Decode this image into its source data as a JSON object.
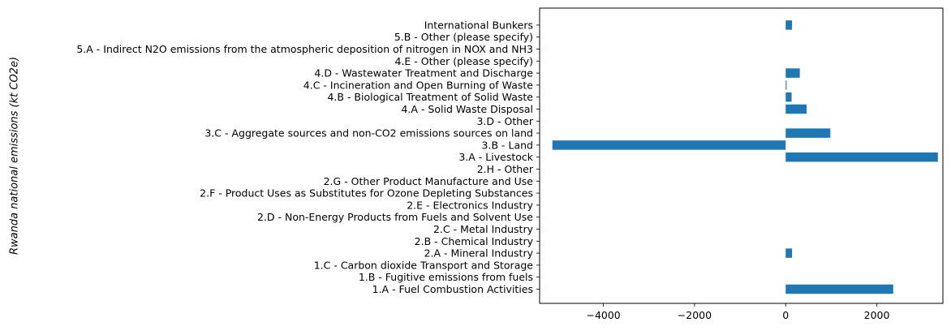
{
  "chart_data": {
    "type": "bar",
    "orientation": "horizontal",
    "ylabel": "Rwanda national emissions (kt CO2e)",
    "xlim": [
      -5400,
      3450
    ],
    "xticks": [
      -4000,
      -2000,
      0,
      2000
    ],
    "xtick_labels": [
      "−4000",
      "−2000",
      "0",
      "2000"
    ],
    "bar_color": "#1f77b4",
    "grid": false,
    "categories": [
      "1.A - Fuel Combustion Activities",
      "1.B - Fugitive emissions from fuels",
      "1.C - Carbon dioxide Transport and Storage",
      "2.A - Mineral Industry",
      "2.B - Chemical Industry",
      "2.C - Metal Industry",
      "2.D - Non-Energy Products from Fuels and Solvent Use",
      "2.E - Electronics Industry",
      "2.F - Product Uses as Substitutes for Ozone Depleting Substances",
      "2.G - Other Product Manufacture and Use",
      "2.H - Other",
      "3.A - Livestock",
      "3.B - Land",
      "3.C - Aggregate sources and non-CO2 emissions sources on land",
      "3.D - Other",
      "4.A - Solid Waste Disposal",
      "4.B - Biological Treatment of Solid Waste",
      "4.C - Incineration and Open Burning of Waste",
      "4.D - Wastewater Treatment and Discharge",
      "4.E - Other (please specify)",
      "5.A - Indirect N2O emissions from the atmospheric deposition of nitrogen in NOX and NH3",
      "5.B - Other (please specify)",
      "International Bunkers"
    ],
    "values": [
      2360,
      0,
      0,
      140,
      0,
      0,
      0,
      0,
      0,
      0,
      0,
      3340,
      -5120,
      980,
      0,
      460,
      130,
      20,
      310,
      0,
      0,
      0,
      140
    ]
  }
}
